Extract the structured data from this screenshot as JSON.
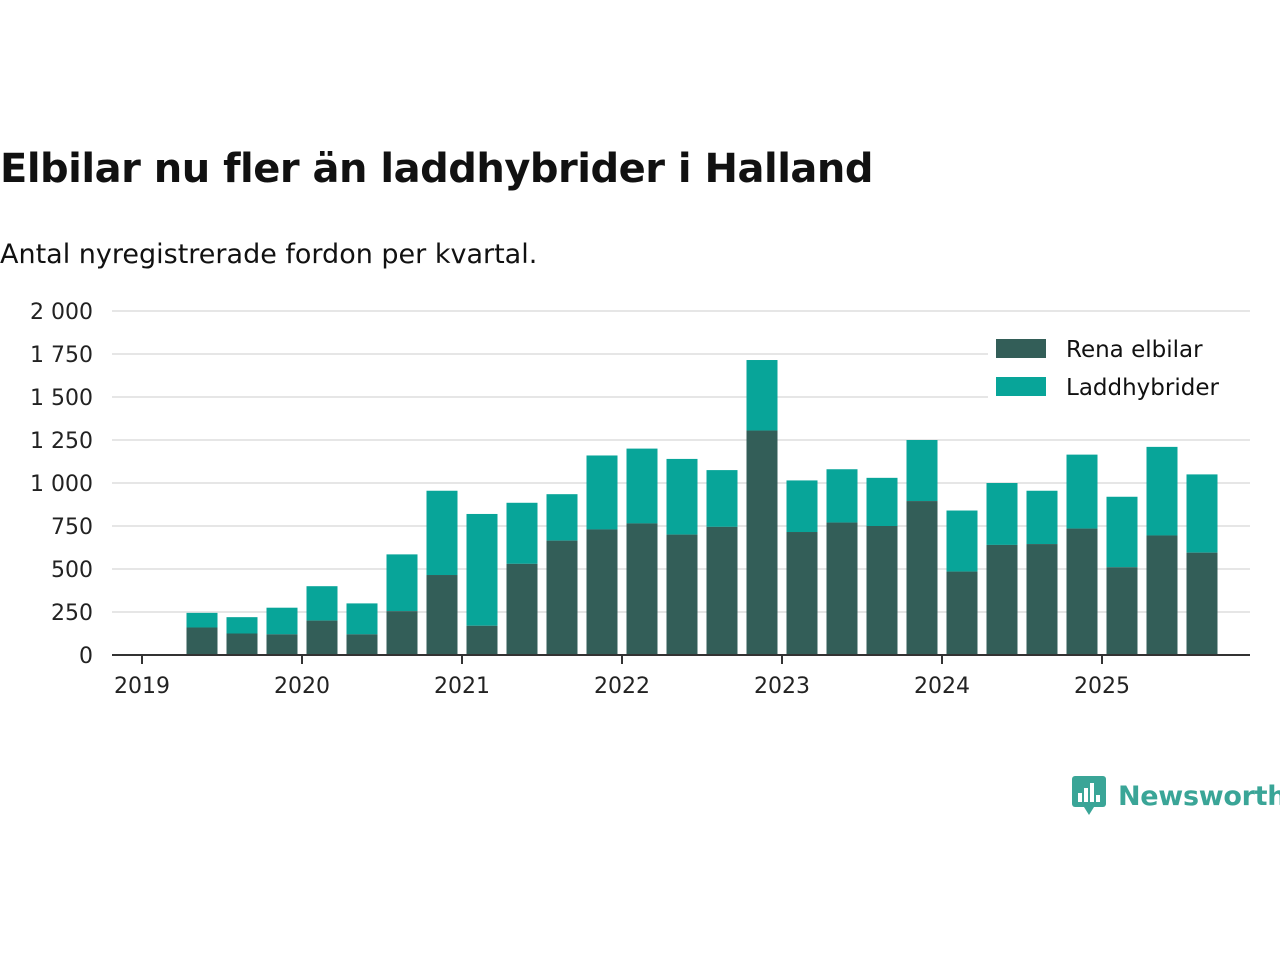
{
  "title": "Elbilar nu fler än laddhybrider i Halland",
  "subtitle": "Antal nyregistrerade fordon per kvartal.",
  "brand": {
    "name": "Newsworthy",
    "icon": "newsworthy-logo-icon"
  },
  "colors": {
    "rena": "#335e58",
    "laddhybrider": "#08a599",
    "grid": "#dddddd",
    "axis": "#333333",
    "brand": "#3aa597"
  },
  "chart_data": {
    "type": "bar",
    "stacked": true,
    "title": "Elbilar nu fler än laddhybrider i Halland",
    "xlabel": "",
    "ylabel": "",
    "ylim": [
      0,
      2000
    ],
    "yticks": [
      {
        "value": 0,
        "label": "0"
      },
      {
        "value": 250,
        "label": "250"
      },
      {
        "value": 500,
        "label": "500"
      },
      {
        "value": 750,
        "label": "750"
      },
      {
        "value": 1000,
        "label": "1 000"
      },
      {
        "value": 1250,
        "label": "1 250"
      },
      {
        "value": 1500,
        "label": "1 500"
      },
      {
        "value": 1750,
        "label": "1 750"
      },
      {
        "value": 2000,
        "label": "2 000"
      }
    ],
    "xtick_labels": [
      "2019",
      "2020",
      "2021",
      "2022",
      "2023",
      "2024",
      "2025"
    ],
    "categories": [
      "2019 Q2",
      "2019 Q3",
      "2019 Q4",
      "2020 Q1",
      "2020 Q2",
      "2020 Q3",
      "2020 Q4",
      "2021 Q1",
      "2021 Q2",
      "2021 Q3",
      "2021 Q4",
      "2022 Q1",
      "2022 Q2",
      "2022 Q3",
      "2022 Q4",
      "2023 Q1",
      "2023 Q2",
      "2023 Q3",
      "2023 Q4",
      "2024 Q1",
      "2024 Q2",
      "2024 Q3",
      "2024 Q4",
      "2025 Q1",
      "2025 Q2",
      "2025 Q3"
    ],
    "legend_position": "top-right",
    "series": [
      {
        "name": "Rena elbilar",
        "color": "#335e58",
        "values": [
          160,
          125,
          120,
          200,
          120,
          255,
          465,
          170,
          530,
          665,
          730,
          765,
          700,
          745,
          1305,
          715,
          770,
          750,
          895,
          485,
          640,
          645,
          735,
          510,
          695,
          595
        ]
      },
      {
        "name": "Laddhybrider",
        "color": "#08a599",
        "values": [
          85,
          95,
          155,
          200,
          180,
          330,
          490,
          650,
          355,
          270,
          430,
          435,
          440,
          330,
          410,
          300,
          310,
          280,
          355,
          355,
          360,
          310,
          430,
          410,
          515,
          455
        ]
      }
    ]
  }
}
